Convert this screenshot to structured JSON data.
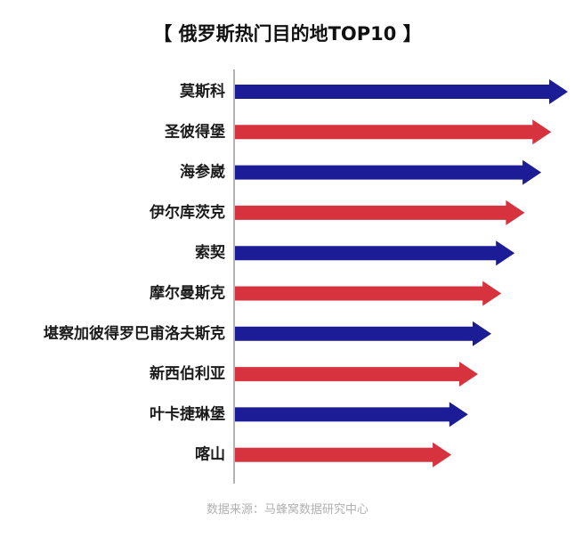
{
  "chart_data": {
    "type": "bar",
    "orientation": "horizontal",
    "title": "【 俄罗斯热门目的地TOP10 】",
    "source": "数据来源：马蜂窝数据研究中心",
    "categories": [
      "莫斯科",
      "圣彼得堡",
      "海参崴",
      "伊尔库茨克",
      "索契",
      "摩尔曼斯克",
      "堪察加彼得罗巴甫洛夫斯克",
      "新西伯利亚",
      "叶卡捷琳堡",
      "喀山"
    ],
    "values": [
      10,
      9.5,
      9.2,
      8.7,
      8.4,
      8.0,
      7.7,
      7.3,
      7.0,
      6.5
    ],
    "xlim": [
      0,
      10
    ],
    "colors": {
      "odd": "#1c1c96",
      "even": "#d7333e",
      "axis": "#999999"
    },
    "grid": false,
    "legend": "none"
  }
}
